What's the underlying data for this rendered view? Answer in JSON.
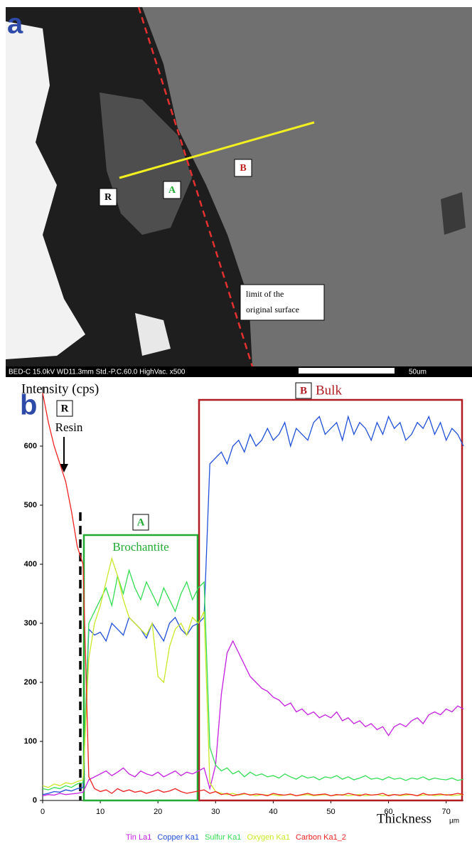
{
  "panel_a": {
    "panel_label": "a",
    "regions": [
      "R",
      "A",
      "B"
    ],
    "note": [
      "limit of the",
      "original surface"
    ],
    "info_bar": "BED-C  15.0kV  WD11.3mm  Std.-P.C.60.0  HighVac.  x500",
    "scale_bar": "50um"
  },
  "chart_data": {
    "type": "line",
    "panel_label": "b",
    "y_label": "Intensity (cps)",
    "x_label": "Thickness",
    "x_unit": "µm",
    "annotations": {
      "R": "R",
      "resin": "Resin",
      "A": "A",
      "brochantite": "Brochantite",
      "B": "B",
      "bulk": "Bulk"
    },
    "xlim": [
      0,
      73
    ],
    "ylim": [
      0,
      700
    ],
    "xticks": [
      0,
      10,
      20,
      30,
      40,
      50,
      60,
      70
    ],
    "yticks": [
      0,
      100,
      200,
      300,
      400,
      500,
      600
    ],
    "x": [
      0,
      1,
      2,
      3,
      4,
      5,
      6,
      7,
      8,
      9,
      10,
      11,
      12,
      13,
      14,
      15,
      16,
      17,
      18,
      19,
      20,
      21,
      22,
      23,
      24,
      25,
      26,
      27,
      28,
      29,
      30,
      31,
      32,
      33,
      34,
      35,
      36,
      37,
      38,
      39,
      40,
      41,
      42,
      43,
      44,
      45,
      46,
      47,
      48,
      49,
      50,
      51,
      52,
      53,
      54,
      55,
      56,
      57,
      58,
      59,
      60,
      61,
      62,
      63,
      64,
      65,
      66,
      67,
      68,
      69,
      70,
      71,
      72,
      73
    ],
    "series": [
      {
        "name": "Tin La1",
        "color": "#c41ee0",
        "values": [
          8,
          10,
          9,
          12,
          10,
          11,
          12,
          14,
          35,
          40,
          45,
          50,
          42,
          48,
          55,
          45,
          40,
          50,
          45,
          42,
          48,
          40,
          45,
          50,
          42,
          48,
          45,
          50,
          55,
          20,
          60,
          180,
          250,
          270,
          250,
          230,
          210,
          200,
          190,
          185,
          175,
          170,
          160,
          165,
          150,
          155,
          145,
          150,
          140,
          145,
          140,
          150,
          135,
          140,
          130,
          135,
          125,
          130,
          120,
          125,
          110,
          125,
          130,
          125,
          135,
          140,
          130,
          145,
          150,
          145,
          155,
          150,
          160,
          155
        ]
      },
      {
        "name": "Copper Ka1",
        "color": "#2050d8",
        "values": [
          10,
          12,
          15,
          14,
          18,
          16,
          20,
          22,
          290,
          280,
          285,
          270,
          300,
          290,
          280,
          310,
          300,
          290,
          275,
          300,
          285,
          270,
          300,
          310,
          290,
          280,
          295,
          300,
          310,
          570,
          580,
          590,
          570,
          600,
          610,
          590,
          620,
          600,
          610,
          630,
          610,
          620,
          640,
          600,
          630,
          620,
          610,
          640,
          650,
          620,
          630,
          640,
          610,
          650,
          620,
          640,
          630,
          610,
          640,
          620,
          650,
          630,
          640,
          610,
          620,
          640,
          630,
          650,
          620,
          640,
          610,
          630,
          620,
          600
        ]
      },
      {
        "name": "Sulfur Ka1",
        "color": "#33dd55",
        "values": [
          20,
          18,
          22,
          20,
          25,
          22,
          28,
          30,
          300,
          320,
          340,
          360,
          330,
          380,
          350,
          390,
          360,
          340,
          370,
          350,
          330,
          360,
          340,
          320,
          350,
          370,
          340,
          360,
          370,
          90,
          60,
          50,
          55,
          45,
          50,
          40,
          48,
          42,
          45,
          40,
          42,
          38,
          45,
          40,
          36,
          42,
          38,
          40,
          35,
          40,
          38,
          42,
          36,
          40,
          35,
          38,
          42,
          36,
          38,
          35,
          40,
          36,
          38,
          34,
          38,
          36,
          40,
          35,
          38,
          36,
          35,
          38,
          34,
          36
        ]
      },
      {
        "name": "Oxygen Ka1",
        "color": "#cbe826",
        "values": [
          25,
          22,
          28,
          25,
          30,
          28,
          32,
          35,
          240,
          300,
          330,
          370,
          410,
          380,
          340,
          310,
          300,
          290,
          280,
          300,
          210,
          200,
          260,
          290,
          300,
          280,
          310,
          300,
          320,
          30,
          15,
          12,
          10,
          12,
          9,
          11,
          10,
          8,
          10,
          9,
          10,
          8,
          9,
          10,
          8,
          9,
          10,
          8,
          9,
          10,
          8,
          9,
          10,
          8,
          9,
          10,
          8,
          9,
          10,
          8,
          9,
          10,
          8,
          9,
          10,
          8,
          9,
          10,
          8,
          9,
          10,
          8,
          9,
          10
        ]
      },
      {
        "name": "Carbon Ka1_2",
        "color": "#ee2222",
        "values": [
          690,
          640,
          600,
          570,
          540,
          490,
          430,
          400,
          40,
          20,
          15,
          18,
          12,
          20,
          15,
          18,
          14,
          16,
          12,
          15,
          18,
          14,
          16,
          20,
          15,
          12,
          14,
          16,
          18,
          12,
          15,
          10,
          12,
          8,
          10,
          12,
          9,
          11,
          10,
          8,
          12,
          10,
          9,
          11,
          8,
          10,
          12,
          9,
          10,
          11,
          8,
          10,
          9,
          12,
          10,
          8,
          11,
          9,
          10,
          12,
          8,
          10,
          9,
          11,
          10,
          8,
          12,
          9,
          10,
          11,
          9,
          10,
          12,
          10
        ]
      }
    ]
  }
}
